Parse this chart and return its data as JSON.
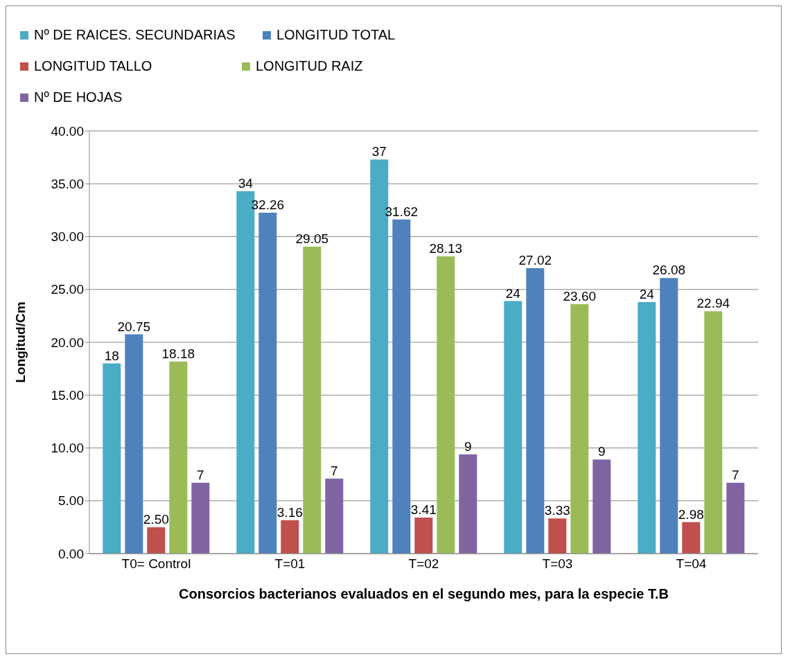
{
  "chart_data": {
    "type": "bar",
    "xlabel": "Consorcios bacterianos evaluados en el segundo mes, para la especie T.B",
    "ylabel": "Longitud/Cm",
    "categories": [
      "T0= Control",
      "T=01",
      "T=02",
      "T=03",
      "T=04"
    ],
    "series": [
      {
        "name": "Nº DE RAICES. SECUNDARIAS",
        "color": "#4bacc6",
        "values": [
          18.0,
          34.3,
          37.3,
          23.9,
          23.8
        ],
        "value_labels": [
          "18",
          "34",
          "37",
          "24",
          "24"
        ]
      },
      {
        "name": "LONGITUD TOTAL",
        "color": "#4f81bd",
        "values": [
          20.75,
          32.26,
          31.62,
          27.02,
          26.08
        ],
        "value_labels": [
          "20.75",
          "32.26",
          "31.62",
          "27.02",
          "26.08"
        ]
      },
      {
        "name": "LONGITUD TALLO",
        "color": "#c0504d",
        "values": [
          2.5,
          3.16,
          3.41,
          3.33,
          2.98
        ],
        "value_labels": [
          "2.50",
          "3.16",
          "3.41",
          "3.33",
          "2.98"
        ]
      },
      {
        "name": "LONGITUD RAIZ",
        "color": "#9bbb59",
        "values": [
          18.18,
          29.05,
          28.13,
          23.6,
          22.94
        ],
        "value_labels": [
          "18.18",
          "29.05",
          "28.13",
          "23.60",
          "22.94"
        ]
      },
      {
        "name": "Nº DE HOJAS",
        "color": "#8064a2",
        "values": [
          6.7,
          7.1,
          9.4,
          8.9,
          6.7
        ],
        "value_labels": [
          "7",
          "7",
          "9",
          "9",
          "7"
        ]
      }
    ],
    "ylim": [
      0,
      40
    ],
    "yticks": [
      {
        "value": 0,
        "label": "0.00"
      },
      {
        "value": 5,
        "label": "5.00"
      },
      {
        "value": 10,
        "label": "10.00"
      },
      {
        "value": 15,
        "label": "15.00"
      },
      {
        "value": 20,
        "label": "20.00"
      },
      {
        "value": 25,
        "label": "25.00"
      },
      {
        "value": 30,
        "label": "30.00"
      },
      {
        "value": 35,
        "label": "35.00"
      },
      {
        "value": 40,
        "label": "40.00"
      }
    ],
    "grid": "y",
    "legend": "top"
  }
}
